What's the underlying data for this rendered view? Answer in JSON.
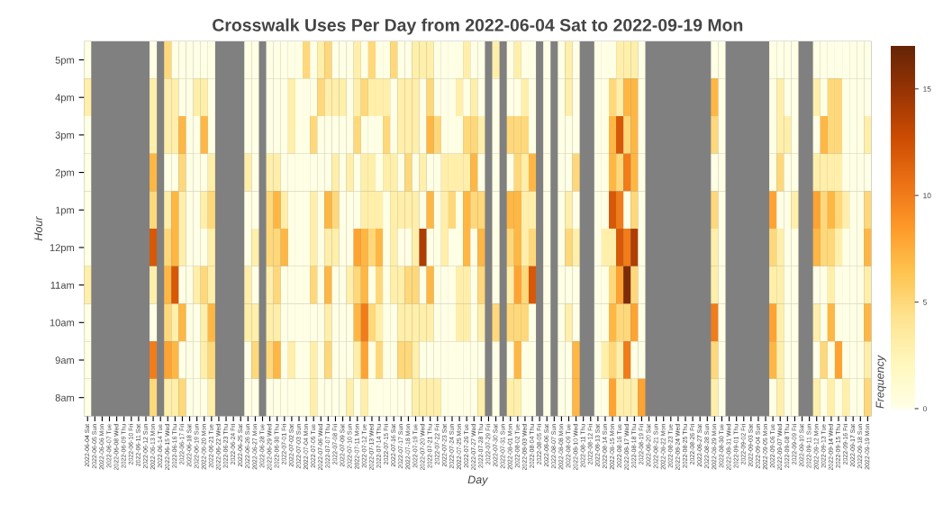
{
  "chart_data": {
    "type": "heatmap",
    "title": "Crosswalk Uses Per Day from 2022-06-04 Sat to 2022-09-19 Mon",
    "xlabel": "Day",
    "ylabel": "Hour",
    "clabel": "Frequency",
    "categories": [
      "2022-06-04 Sat",
      "2022-06-05 Sun",
      "2022-06-06 Mon",
      "2022-06-07 Tue",
      "2022-06-08 Wed",
      "2022-06-09 Thu",
      "2022-06-10 Fri",
      "2022-06-11 Sat",
      "2022-06-12 Sun",
      "2022-06-13 Mon",
      "2022-06-14 Tue",
      "2022-06-15 Wed",
      "2022-06-16 Thu",
      "2022-06-17 Fri",
      "2022-06-18 Sat",
      "2022-06-19 Sun",
      "2022-06-20 Mon",
      "2022-06-21 Tue",
      "2022-06-22 Wed",
      "2022-06-23 Thu",
      "2022-06-24 Fri",
      "2022-06-25 Sat",
      "2022-06-26 Sun",
      "2022-06-27 Mon",
      "2022-06-28 Tue",
      "2022-06-29 Wed",
      "2022-06-30 Thu",
      "2022-07-01 Fri",
      "2022-07-02 Sat",
      "2022-07-03 Sun",
      "2022-07-04 Mon",
      "2022-07-05 Tue",
      "2022-07-06 Wed",
      "2022-07-07 Thu",
      "2022-07-08 Fri",
      "2022-07-09 Sat",
      "2022-07-10 Sun",
      "2022-07-11 Mon",
      "2022-07-12 Tue",
      "2022-07-13 Wed",
      "2022-07-14 Thu",
      "2022-07-15 Fri",
      "2022-07-16 Sat",
      "2022-07-17 Sun",
      "2022-07-18 Mon",
      "2022-07-19 Tue",
      "2022-07-20 Wed",
      "2022-07-21 Thu",
      "2022-07-22 Fri",
      "2022-07-23 Sat",
      "2022-07-24 Sun",
      "2022-07-25 Mon",
      "2022-07-26 Tue",
      "2022-07-27 Wed",
      "2022-07-28 Thu",
      "2022-07-29 Fri",
      "2022-07-30 Sat",
      "2022-07-31 Sun",
      "2022-08-01 Mon",
      "2022-08-02 Tue",
      "2022-08-03 Wed",
      "2022-08-04 Thu",
      "2022-08-05 Fri",
      "2022-08-06 Sat",
      "2022-08-07 Sun",
      "2022-08-08 Mon",
      "2022-08-09 Tue",
      "2022-08-10 Wed",
      "2022-08-11 Thu",
      "2022-08-12 Fri",
      "2022-08-13 Sat",
      "2022-08-14 Sun",
      "2022-08-15 Mon",
      "2022-08-16 Tue",
      "2022-08-17 Wed",
      "2022-08-18 Thu",
      "2022-08-19 Fri",
      "2022-08-20 Sat",
      "2022-08-21 Sun",
      "2022-08-22 Mon",
      "2022-08-23 Tue",
      "2022-08-24 Wed",
      "2022-08-25 Thu",
      "2022-08-26 Fri",
      "2022-08-27 Sat",
      "2022-08-28 Sun",
      "2022-08-29 Mon",
      "2022-08-30 Tue",
      "2022-08-31 Wed",
      "2022-09-01 Thu",
      "2022-09-02 Fri",
      "2022-09-03 Sat",
      "2022-09-04 Sun",
      "2022-09-05 Mon",
      "2022-09-06 Tue",
      "2022-09-07 Wed",
      "2022-09-08 Thu",
      "2022-09-09 Fri",
      "2022-09-10 Sat",
      "2022-09-11 Sun",
      "2022-09-12 Mon",
      "2022-09-13 Tue",
      "2022-09-14 Wed",
      "2022-09-15 Thu",
      "2022-09-16 Fri",
      "2022-09-17 Sat",
      "2022-09-18 Sun",
      "2022-09-19 Mon"
    ],
    "y_categories": [
      "5pm",
      "4pm",
      "3pm",
      "2pm",
      "1pm",
      "12pm",
      "11am",
      "10am",
      "9am",
      "8am"
    ],
    "clim": [
      0,
      17
    ],
    "cticks": [
      0,
      5,
      10,
      15
    ],
    "cells": [
      [
        0,
        null,
        null,
        null,
        null,
        null,
        null,
        null,
        null,
        0,
        null,
        5,
        0,
        0,
        0,
        0,
        0,
        0,
        null,
        null,
        null,
        null,
        0,
        0,
        null,
        0,
        0,
        0,
        0,
        0,
        5,
        0,
        3,
        5,
        0,
        0,
        0,
        3,
        0,
        5,
        0,
        0,
        5,
        0,
        0,
        3,
        3,
        3,
        0,
        0,
        0,
        0,
        3,
        0,
        0,
        null,
        3,
        null,
        0,
        3,
        0,
        0,
        null,
        0,
        null,
        0,
        3,
        0,
        null,
        null,
        0,
        0,
        0,
        3,
        3,
        3,
        0,
        null,
        null,
        null,
        null,
        null,
        null,
        null,
        null,
        null,
        0,
        0,
        null,
        null,
        null,
        null,
        null,
        null,
        0,
        0,
        0,
        0,
        null,
        null,
        0,
        0,
        0,
        0,
        0,
        0,
        0,
        0
      ],
      [
        3,
        null,
        null,
        null,
        null,
        null,
        null,
        null,
        null,
        3,
        null,
        3,
        3,
        0,
        0,
        3,
        3,
        0,
        null,
        null,
        null,
        null,
        0,
        0,
        null,
        0,
        0,
        0,
        3,
        0,
        0,
        0,
        5,
        3,
        3,
        3,
        0,
        3,
        5,
        3,
        3,
        3,
        0,
        3,
        3,
        3,
        0,
        5,
        0,
        0,
        0,
        3,
        0,
        3,
        0,
        null,
        0,
        null,
        0,
        0,
        3,
        0,
        null,
        0,
        null,
        0,
        3,
        0,
        null,
        null,
        0,
        0,
        5,
        3,
        7,
        7,
        0,
        null,
        null,
        null,
        null,
        null,
        null,
        null,
        null,
        null,
        7,
        0,
        null,
        null,
        null,
        null,
        null,
        null,
        0,
        3,
        0,
        0,
        null,
        null,
        3,
        0,
        5,
        5,
        0,
        0,
        0,
        0
      ],
      [
        0,
        null,
        null,
        null,
        null,
        null,
        null,
        null,
        null,
        3,
        null,
        3,
        3,
        7,
        0,
        0,
        7,
        0,
        null,
        null,
        null,
        null,
        0,
        0,
        null,
        0,
        0,
        0,
        3,
        0,
        0,
        5,
        0,
        0,
        0,
        0,
        0,
        5,
        0,
        0,
        0,
        5,
        0,
        3,
        3,
        3,
        0,
        7,
        5,
        0,
        0,
        0,
        5,
        5,
        3,
        null,
        0,
        null,
        5,
        5,
        5,
        0,
        null,
        0,
        null,
        0,
        0,
        0,
        null,
        null,
        0,
        0,
        7,
        12,
        5,
        7,
        0,
        null,
        null,
        null,
        null,
        null,
        null,
        null,
        null,
        null,
        5,
        0,
        null,
        null,
        null,
        null,
        null,
        null,
        0,
        3,
        3,
        0,
        null,
        null,
        0,
        7,
        5,
        5,
        0,
        0,
        0,
        3
      ],
      [
        0,
        null,
        null,
        null,
        null,
        null,
        null,
        null,
        null,
        7,
        null,
        0,
        0,
        5,
        0,
        0,
        0,
        3,
        null,
        null,
        null,
        null,
        3,
        0,
        null,
        3,
        3,
        0,
        0,
        0,
        0,
        0,
        0,
        0,
        3,
        0,
        3,
        0,
        3,
        3,
        0,
        3,
        3,
        0,
        5,
        0,
        3,
        0,
        0,
        3,
        3,
        3,
        3,
        7,
        0,
        null,
        0,
        null,
        0,
        5,
        3,
        7,
        null,
        0,
        null,
        0,
        0,
        5,
        null,
        null,
        0,
        0,
        7,
        5,
        10,
        7,
        0,
        null,
        null,
        null,
        null,
        null,
        null,
        null,
        null,
        null,
        0,
        0,
        null,
        null,
        null,
        null,
        null,
        null,
        0,
        5,
        0,
        0,
        null,
        null,
        3,
        3,
        3,
        3,
        0,
        0,
        0,
        0
      ],
      [
        0,
        null,
        null,
        null,
        null,
        null,
        null,
        null,
        null,
        5,
        null,
        3,
        7,
        3,
        0,
        0,
        3,
        5,
        null,
        null,
        null,
        null,
        0,
        0,
        null,
        5,
        7,
        3,
        0,
        0,
        0,
        3,
        0,
        7,
        5,
        0,
        0,
        0,
        3,
        3,
        3,
        0,
        3,
        3,
        3,
        3,
        0,
        7,
        0,
        3,
        5,
        0,
        7,
        5,
        5,
        null,
        0,
        null,
        7,
        7,
        3,
        3,
        null,
        0,
        null,
        0,
        3,
        0,
        null,
        null,
        0,
        0,
        12,
        10,
        0,
        5,
        0,
        null,
        null,
        null,
        null,
        null,
        null,
        null,
        null,
        null,
        5,
        0,
        null,
        null,
        null,
        null,
        null,
        null,
        8,
        0,
        0,
        3,
        null,
        null,
        8,
        5,
        7,
        5,
        3,
        0,
        0,
        5
      ],
      [
        0,
        null,
        null,
        null,
        null,
        null,
        null,
        null,
        null,
        12,
        null,
        5,
        7,
        3,
        0,
        0,
        0,
        3,
        null,
        null,
        null,
        null,
        0,
        3,
        null,
        5,
        5,
        7,
        0,
        0,
        0,
        3,
        0,
        3,
        3,
        0,
        0,
        8,
        7,
        5,
        7,
        0,
        3,
        0,
        0,
        3,
        14,
        0,
        0,
        3,
        0,
        0,
        7,
        0,
        7,
        null,
        0,
        null,
        5,
        7,
        3,
        5,
        null,
        0,
        null,
        0,
        5,
        3,
        null,
        null,
        0,
        3,
        3,
        12,
        10,
        14,
        0,
        null,
        null,
        null,
        null,
        null,
        null,
        null,
        null,
        null,
        3,
        0,
        null,
        null,
        null,
        null,
        null,
        null,
        5,
        3,
        0,
        0,
        null,
        null,
        7,
        5,
        5,
        3,
        0,
        0,
        0,
        7
      ],
      [
        3,
        null,
        null,
        null,
        null,
        null,
        null,
        null,
        null,
        3,
        null,
        7,
        12,
        0,
        0,
        3,
        5,
        3,
        null,
        null,
        null,
        null,
        3,
        0,
        null,
        3,
        5,
        0,
        0,
        0,
        0,
        5,
        0,
        7,
        0,
        0,
        3,
        5,
        7,
        0,
        5,
        0,
        3,
        3,
        5,
        5,
        0,
        7,
        0,
        0,
        0,
        3,
        3,
        0,
        5,
        null,
        0,
        null,
        3,
        8,
        5,
        12,
        null,
        0,
        null,
        0,
        0,
        0,
        null,
        null,
        0,
        0,
        5,
        8,
        16,
        5,
        0,
        null,
        null,
        null,
        null,
        null,
        null,
        null,
        null,
        null,
        3,
        0,
        null,
        null,
        null,
        null,
        null,
        null,
        3,
        3,
        0,
        0,
        null,
        null,
        0,
        0,
        3,
        0,
        0,
        0,
        0,
        3
      ],
      [
        0,
        null,
        null,
        null,
        null,
        null,
        null,
        null,
        null,
        0,
        null,
        5,
        3,
        7,
        0,
        0,
        3,
        7,
        null,
        null,
        null,
        null,
        3,
        3,
        null,
        3,
        3,
        0,
        0,
        0,
        0,
        0,
        0,
        3,
        0,
        0,
        0,
        7,
        10,
        5,
        3,
        0,
        0,
        3,
        3,
        3,
        3,
        3,
        0,
        0,
        0,
        3,
        3,
        0,
        3,
        null,
        5,
        null,
        5,
        5,
        5,
        0,
        null,
        0,
        null,
        0,
        3,
        0,
        null,
        null,
        0,
        0,
        7,
        5,
        5,
        8,
        0,
        null,
        null,
        null,
        null,
        null,
        null,
        null,
        null,
        null,
        10,
        0,
        null,
        null,
        null,
        null,
        null,
        null,
        8,
        3,
        0,
        0,
        null,
        null,
        3,
        0,
        7,
        0,
        0,
        0,
        0,
        7
      ],
      [
        0,
        null,
        null,
        null,
        null,
        null,
        null,
        null,
        null,
        10,
        null,
        8,
        7,
        0,
        0,
        0,
        3,
        5,
        null,
        null,
        null,
        null,
        0,
        5,
        null,
        5,
        7,
        0,
        3,
        0,
        0,
        3,
        0,
        5,
        0,
        0,
        0,
        3,
        8,
        0,
        5,
        0,
        0,
        5,
        5,
        3,
        0,
        0,
        0,
        0,
        0,
        0,
        0,
        0,
        0,
        null,
        0,
        null,
        0,
        7,
        0,
        0,
        null,
        0,
        null,
        0,
        0,
        7,
        null,
        null,
        0,
        3,
        5,
        3,
        10,
        0,
        0,
        null,
        null,
        null,
        null,
        null,
        null,
        null,
        null,
        null,
        5,
        0,
        null,
        null,
        null,
        null,
        null,
        null,
        7,
        3,
        0,
        0,
        null,
        null,
        0,
        5,
        0,
        8,
        0,
        0,
        0,
        3
      ],
      [
        0,
        null,
        null,
        null,
        null,
        null,
        null,
        null,
        null,
        5,
        null,
        3,
        3,
        5,
        0,
        0,
        0,
        3,
        null,
        null,
        null,
        null,
        0,
        0,
        null,
        0,
        0,
        0,
        0,
        0,
        0,
        3,
        0,
        0,
        0,
        0,
        3,
        0,
        3,
        0,
        0,
        0,
        0,
        0,
        0,
        3,
        3,
        3,
        3,
        0,
        0,
        0,
        0,
        0,
        3,
        null,
        0,
        null,
        3,
        3,
        0,
        0,
        null,
        0,
        null,
        0,
        0,
        7,
        null,
        null,
        0,
        0,
        8,
        3,
        3,
        3,
        8,
        null,
        null,
        null,
        null,
        null,
        null,
        null,
        null,
        null,
        3,
        0,
        null,
        null,
        null,
        null,
        null,
        null,
        0,
        3,
        0,
        0,
        null,
        null,
        3,
        0,
        3,
        0,
        3,
        0,
        0,
        5
      ]
    ]
  }
}
